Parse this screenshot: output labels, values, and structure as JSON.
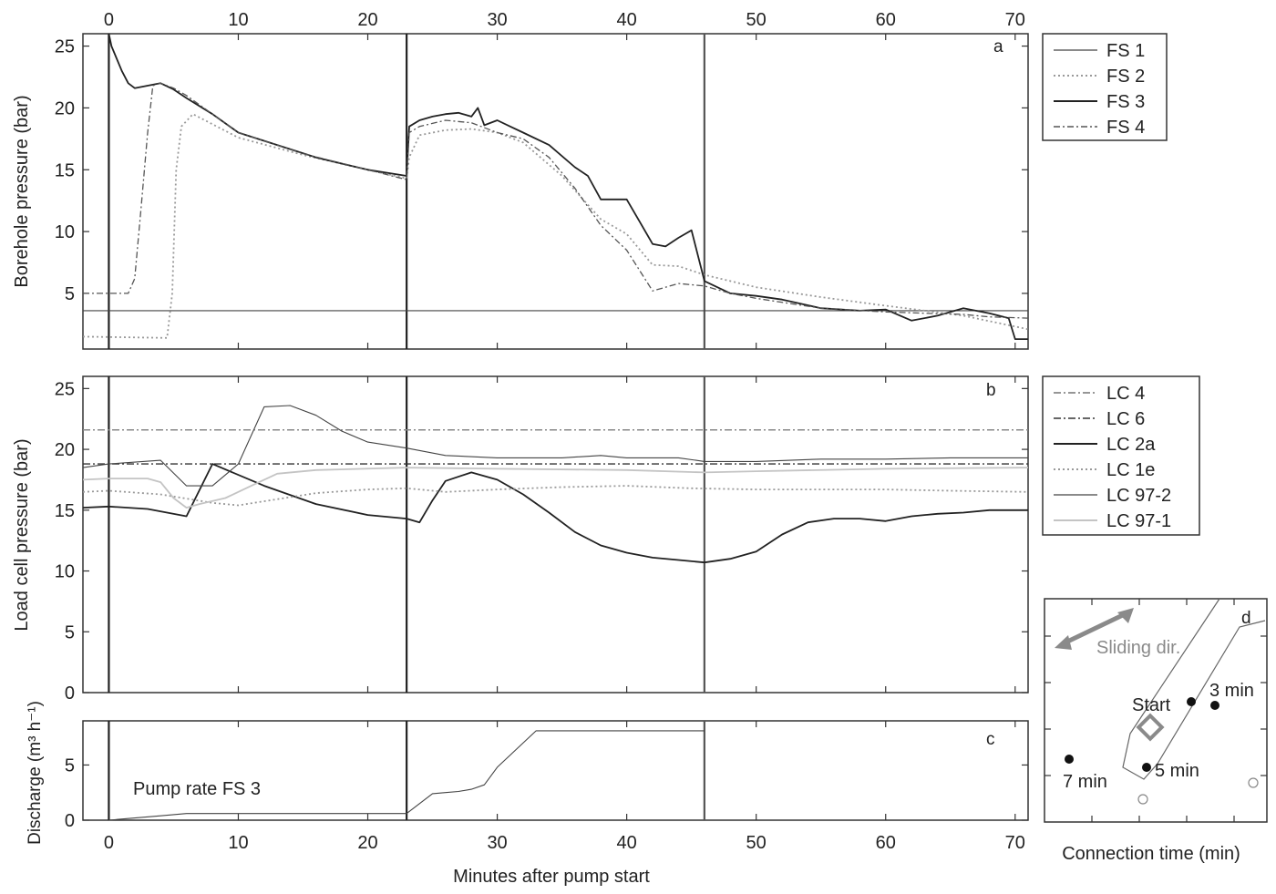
{
  "figure": {
    "x_axis_label": "Minutes after pump start",
    "x_ticks": [
      "0",
      "10",
      "20",
      "30",
      "40",
      "50",
      "60",
      "70"
    ],
    "x_range": [
      -2,
      71
    ]
  },
  "chart_data": [
    {
      "panel": "a",
      "type": "line",
      "ylabel": "Borehole pressure (bar)",
      "ylim": [
        0.5,
        26
      ],
      "y_ticks": [
        "5",
        "10",
        "15",
        "20",
        "25"
      ],
      "x_ticks_top": [
        "0",
        "10",
        "20",
        "30",
        "40",
        "50",
        "60",
        "70"
      ],
      "vlines": [
        0,
        23,
        46
      ],
      "legend": [
        "FS 1",
        "FS 2",
        "FS 3",
        "FS 4"
      ],
      "series": [
        {
          "name": "FS 1",
          "style": "thin",
          "x": [
            -2,
            71
          ],
          "y": [
            3.6,
            3.6
          ]
        },
        {
          "name": "FS 2",
          "style": "dotted",
          "x": [
            -2,
            4.5,
            4.9,
            5.2,
            5.6,
            6.5,
            10,
            15,
            20,
            23,
            23.2,
            24,
            26,
            28,
            30,
            32,
            35,
            38,
            40,
            42,
            44,
            46,
            50,
            55,
            60,
            63,
            66,
            71
          ],
          "y": [
            1.5,
            1.4,
            5,
            15,
            18.5,
            19.5,
            17.6,
            16.2,
            15,
            14.3,
            16,
            17.8,
            18.2,
            18.3,
            18,
            17.2,
            14.5,
            11,
            9.8,
            7.3,
            7.2,
            6.5,
            5.5,
            4.7,
            4,
            3.6,
            3.2,
            2.1
          ]
        },
        {
          "name": "FS 3",
          "style": "thick",
          "x": [
            0,
            0.2,
            1,
            1.5,
            2,
            3,
            4,
            5,
            6,
            8,
            10,
            13,
            16,
            20,
            23,
            23.2,
            24,
            25,
            26,
            27,
            28,
            28.5,
            29,
            30,
            31,
            32,
            34,
            36,
            37,
            38,
            40,
            41,
            42,
            43,
            44,
            45,
            46,
            48,
            50,
            52,
            55,
            58,
            60,
            62,
            64,
            66,
            68,
            69.5,
            70,
            71
          ],
          "y": [
            26,
            25,
            23,
            22,
            21.6,
            21.8,
            22,
            21.5,
            20.8,
            19.5,
            18,
            17,
            16,
            15,
            14.5,
            18.5,
            19,
            19.3,
            19.5,
            19.6,
            19.3,
            20,
            18.6,
            19,
            18.5,
            18,
            17,
            15.2,
            14.5,
            12.6,
            12.6,
            10.8,
            9,
            8.8,
            9.5,
            10.1,
            6,
            5,
            4.8,
            4.5,
            3.8,
            3.6,
            3.7,
            2.8,
            3.2,
            3.8,
            3.4,
            3,
            1.3,
            1.3
          ]
        },
        {
          "name": "FS 4",
          "style": "dashdot",
          "x": [
            -2,
            1.5,
            2,
            2.5,
            3,
            3.4,
            4,
            5,
            6,
            10,
            15,
            20,
            23,
            23.2,
            24,
            26,
            28,
            30,
            32,
            34,
            36,
            38,
            40,
            42,
            44,
            46,
            48,
            50,
            55,
            60,
            63,
            66,
            68,
            71
          ],
          "y": [
            5,
            5,
            6.2,
            12,
            18,
            21.8,
            22,
            21.6,
            21,
            18,
            16.3,
            15,
            14.2,
            18,
            18.5,
            19,
            18.8,
            18,
            17.5,
            16,
            13.5,
            10.5,
            8.5,
            5.2,
            5.8,
            5.6,
            5,
            4.6,
            3.8,
            3.5,
            3.4,
            3.3,
            3.1,
            3
          ]
        }
      ]
    },
    {
      "panel": "b",
      "type": "line",
      "ylabel": "Load cell pressure (bar)",
      "ylim": [
        0,
        26
      ],
      "y_ticks": [
        "0",
        "5",
        "10",
        "15",
        "20",
        "25"
      ],
      "vlines": [
        0,
        23,
        46
      ],
      "legend": [
        "LC 4",
        "LC 6",
        "LC 2a",
        "LC 1e",
        "LC 97-2",
        "LC 97-1"
      ],
      "series": [
        {
          "name": "LC 4",
          "style": "dashdot-light",
          "x": [
            -2,
            71
          ],
          "y": [
            21.6,
            21.6
          ]
        },
        {
          "name": "LC 6",
          "style": "dashdot-dark",
          "x": [
            -2,
            71
          ],
          "y": [
            18.8,
            18.8
          ]
        },
        {
          "name": "LC 2a",
          "style": "thick",
          "x": [
            -2,
            0,
            3,
            6,
            8,
            12,
            16,
            20,
            23,
            24,
            25,
            26,
            28,
            30,
            32,
            34,
            36,
            38,
            40,
            42,
            44,
            46,
            48,
            50,
            52,
            54,
            56,
            58,
            60,
            62,
            64,
            66,
            68,
            71
          ],
          "y": [
            15.2,
            15.3,
            15.1,
            14.5,
            18.8,
            17,
            15.5,
            14.6,
            14.3,
            14,
            15.8,
            17.4,
            18.1,
            17.5,
            16.3,
            14.8,
            13.2,
            12.1,
            11.5,
            11.1,
            10.9,
            10.7,
            11,
            11.6,
            13,
            14,
            14.3,
            14.3,
            14.1,
            14.5,
            14.7,
            14.8,
            15,
            15
          ]
        },
        {
          "name": "LC 1e",
          "style": "dotted",
          "x": [
            -2,
            0,
            4,
            8,
            10,
            13,
            16,
            20,
            23,
            26,
            30,
            35,
            40,
            45,
            50,
            55,
            60,
            65,
            71
          ],
          "y": [
            16.5,
            16.6,
            16.3,
            15.6,
            15.4,
            15.9,
            16.4,
            16.7,
            16.8,
            16.5,
            16.7,
            16.9,
            17,
            16.8,
            16.7,
            16.7,
            16.7,
            16.6,
            16.5
          ]
        },
        {
          "name": "LC 97-2",
          "style": "thin",
          "x": [
            -2,
            0,
            4,
            6,
            8,
            10,
            12,
            14,
            16,
            18,
            20,
            23,
            26,
            30,
            35,
            38,
            40,
            44,
            46,
            50,
            55,
            60,
            65,
            71
          ],
          "y": [
            18.5,
            18.8,
            19.1,
            17,
            17,
            18.8,
            23.5,
            23.6,
            22.8,
            21.5,
            20.6,
            20.1,
            19.5,
            19.3,
            19.3,
            19.5,
            19.3,
            19.3,
            19,
            19,
            19.2,
            19.2,
            19.3,
            19.3
          ]
        },
        {
          "name": "LC 97-1",
          "style": "light",
          "x": [
            -2,
            0,
            3,
            4,
            5,
            6,
            7,
            9,
            11,
            13,
            16,
            23,
            30,
            40,
            46,
            50,
            60,
            71
          ],
          "y": [
            17.5,
            17.6,
            17.6,
            17.3,
            16,
            15.2,
            15.5,
            16,
            17,
            18,
            18.3,
            18.5,
            18.4,
            18.3,
            18.1,
            18.2,
            18.4,
            18.5
          ]
        }
      ]
    },
    {
      "panel": "c",
      "type": "line",
      "ylabel": "Discharge (m³ h⁻¹)",
      "ylim": [
        0,
        9
      ],
      "y_ticks": [
        "0",
        "5"
      ],
      "vlines": [
        0,
        23,
        46
      ],
      "annotation": "Pump rate FS 3",
      "series": [
        {
          "name": "Pump rate FS 3",
          "style": "thin",
          "x": [
            0,
            2,
            4,
            6,
            10,
            20,
            23,
            24,
            25,
            26,
            27,
            28,
            29,
            30,
            33,
            46
          ],
          "y": [
            0,
            0.2,
            0.4,
            0.6,
            0.6,
            0.6,
            0.6,
            1.5,
            2.4,
            2.5,
            2.6,
            2.8,
            3.2,
            4.8,
            8.1,
            8.1
          ]
        }
      ]
    }
  ],
  "panel_labels": [
    "a",
    "b",
    "c",
    "d"
  ],
  "inset_d": {
    "label": "d",
    "xlabel": "Connection time (min)",
    "arrow_label": "Sliding dir.",
    "arrow_color": "#8a8a8a",
    "labels": [
      "3 min",
      "Start",
      "5 min",
      "7 min"
    ]
  }
}
